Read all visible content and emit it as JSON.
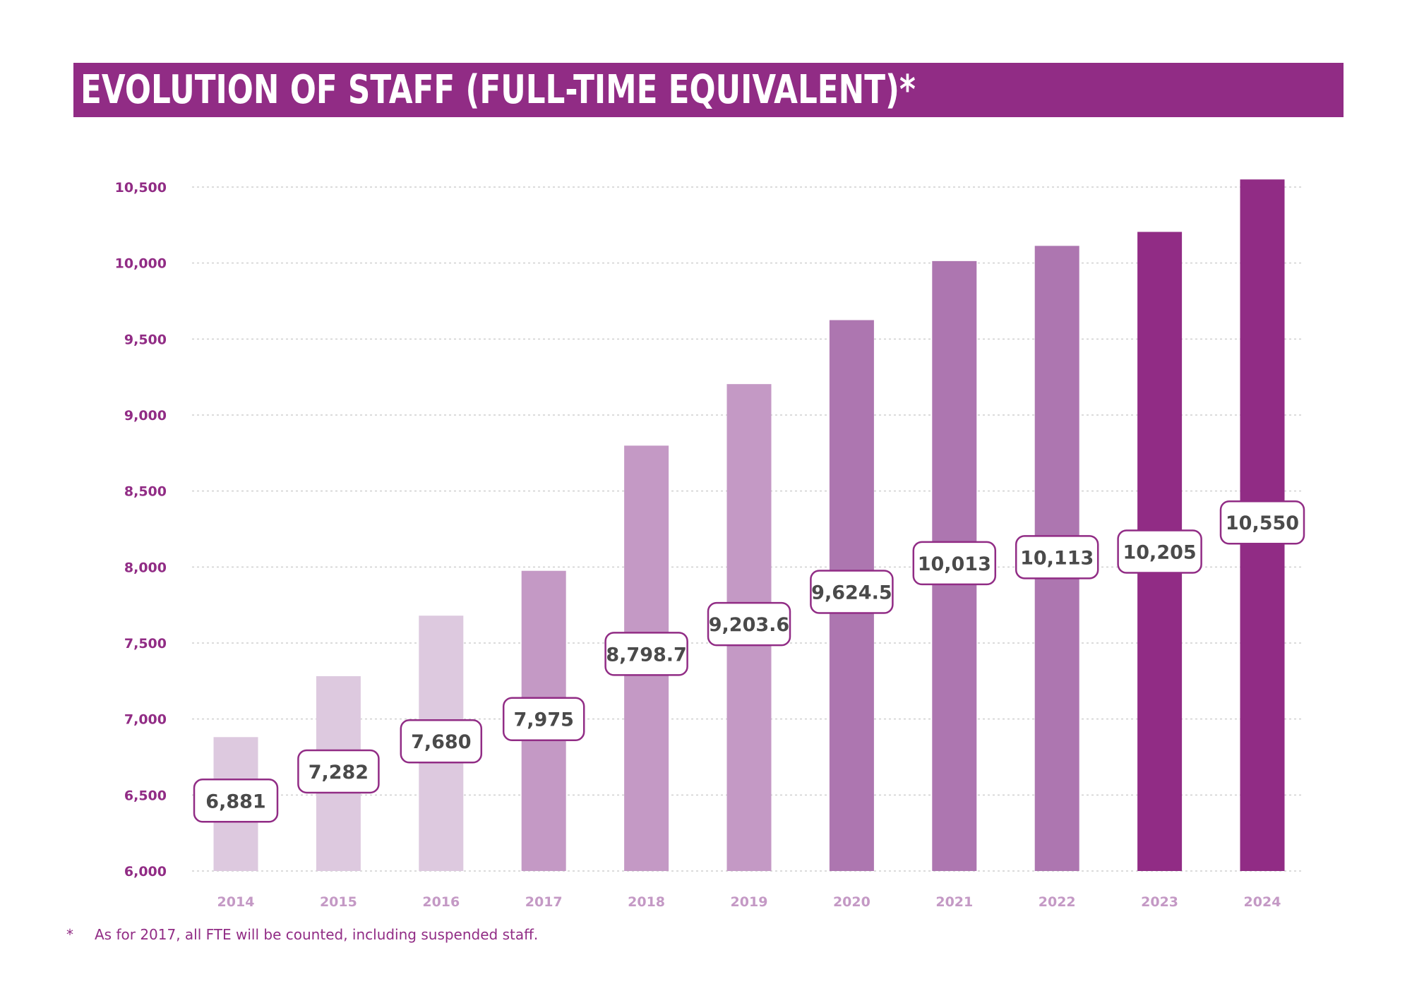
{
  "colors": {
    "brand": "#912c85",
    "bar_light": "#ddc9df",
    "bar_medium": "#c499c5",
    "bar_medium_dark": "#ad76b0",
    "bar_dark": "#912c85",
    "value_label_text": "#4a4a4a",
    "gridline": "#cfcfcf"
  },
  "chart_data": {
    "type": "bar",
    "title": "EVOLUTION OF STAFF (FULL-TIME EQUIVALENT)*",
    "xlabel": "",
    "ylabel": "",
    "categories": [
      "2014",
      "2015",
      "2016",
      "2017",
      "2018",
      "2019",
      "2020",
      "2021",
      "2022",
      "2023",
      "2024"
    ],
    "values": [
      6881,
      7282,
      7680,
      7975,
      8798.7,
      9203.6,
      9624.5,
      10013,
      10113,
      10205,
      10550
    ],
    "value_labels": [
      "6,881",
      "7,282",
      "7,680",
      "7,975",
      "8,798.7",
      "9,203.6",
      "9,624.5",
      "10,013",
      "10,113",
      "10,205",
      "10,550"
    ],
    "bar_colors": [
      "#ddc9df",
      "#ddc9df",
      "#ddc9df",
      "#c499c5",
      "#c499c5",
      "#c499c5",
      "#ad76b0",
      "#ad76b0",
      "#ad76b0",
      "#912c85",
      "#912c85"
    ],
    "ylim": [
      6000,
      10500
    ],
    "yticks": [
      6000,
      6500,
      7000,
      7500,
      8000,
      8500,
      9000,
      9500,
      10000,
      10500
    ],
    "ytick_labels": [
      "6,000",
      "6,500",
      "7,000",
      "7,500",
      "8,000",
      "8,500",
      "9,000",
      "9,500",
      "10,000",
      "10,500"
    ],
    "grid": true,
    "legend": "none"
  },
  "footnote": {
    "marker": "*",
    "text": "As for 2017, all FTE will be counted, including suspended staff."
  }
}
